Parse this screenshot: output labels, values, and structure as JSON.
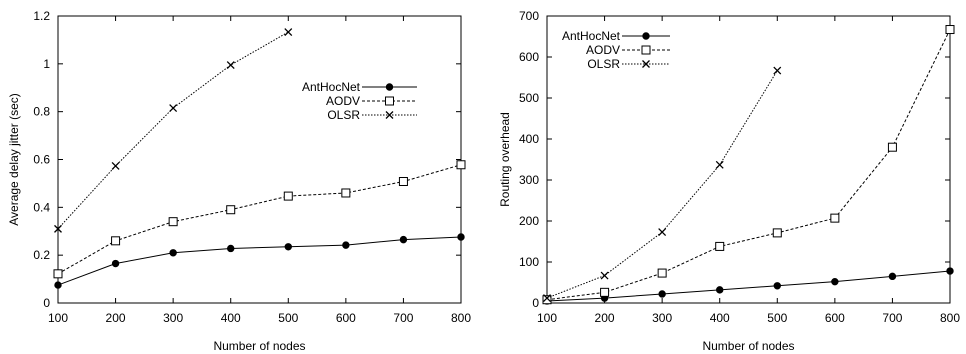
{
  "chart_data": [
    {
      "type": "line",
      "xlabel": "Number of nodes",
      "ylabel": "Average delay jitter (sec)",
      "xlim": [
        100,
        800
      ],
      "ylim": [
        0,
        1.2
      ],
      "x_ticks": [
        "100",
        "200",
        "300",
        "400",
        "500",
        "600",
        "700",
        "800"
      ],
      "y_ticks": [
        "0",
        "0.2",
        "0.4",
        "0.6",
        "0.8",
        "1",
        "1.2"
      ],
      "grid": false,
      "legend": "right",
      "series": [
        {
          "name": "AntHocNet",
          "marker": "filled-circle",
          "dash": "solid",
          "x": [
            100,
            200,
            300,
            400,
            500,
            600,
            700,
            800
          ],
          "values": [
            0.075,
            0.165,
            0.21,
            0.228,
            0.235,
            0.242,
            0.265,
            0.276
          ]
        },
        {
          "name": "AODV",
          "marker": "open-square",
          "dash": "dashed",
          "x": [
            100,
            200,
            300,
            400,
            500,
            600,
            700,
            800
          ],
          "values": [
            0.122,
            0.26,
            0.34,
            0.39,
            0.447,
            0.46,
            0.508,
            0.578
          ]
        },
        {
          "name": "OLSR",
          "marker": "cross",
          "dash": "dotted",
          "x": [
            100,
            200,
            300,
            400,
            500
          ],
          "values": [
            0.31,
            0.573,
            0.815,
            0.995,
            1.133
          ]
        }
      ]
    },
    {
      "type": "line",
      "xlabel": "Number of nodes",
      "ylabel": "Routing overhead",
      "xlim": [
        100,
        800
      ],
      "ylim": [
        0,
        700
      ],
      "x_ticks": [
        "100",
        "200",
        "300",
        "400",
        "500",
        "600",
        "700",
        "800"
      ],
      "y_ticks": [
        "0",
        "100",
        "200",
        "300",
        "400",
        "500",
        "600",
        "700"
      ],
      "grid": false,
      "legend": "top-left",
      "series": [
        {
          "name": "AntHocNet",
          "marker": "filled-circle",
          "dash": "solid",
          "x": [
            100,
            200,
            300,
            400,
            500,
            600,
            700,
            800
          ],
          "values": [
            5,
            12,
            22,
            32,
            42,
            52,
            65,
            78
          ]
        },
        {
          "name": "AODV",
          "marker": "open-square",
          "dash": "dashed",
          "x": [
            100,
            200,
            300,
            400,
            500,
            600,
            700,
            800
          ],
          "values": [
            8,
            26,
            73,
            138,
            171,
            207,
            380,
            667
          ]
        },
        {
          "name": "OLSR",
          "marker": "cross",
          "dash": "dotted",
          "x": [
            100,
            200,
            300,
            400,
            500
          ],
          "values": [
            12,
            67,
            173,
            337,
            567
          ]
        }
      ]
    }
  ]
}
